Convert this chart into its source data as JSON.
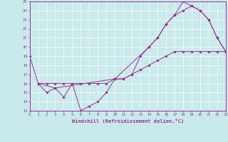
{
  "xlabel": "Windchill (Refroidissement éolien,°C)",
  "bg_color": "#c8eaea",
  "line_color": "#993399",
  "grid_color": "#ffffff",
  "xmin": 0,
  "xmax": 23,
  "ymin": 13,
  "ymax": 25,
  "series1_x": [
    0,
    1,
    2,
    3,
    4,
    5,
    6,
    7,
    8,
    9,
    10,
    11,
    12,
    13,
    14,
    15,
    16,
    17,
    18,
    19,
    20,
    21,
    22,
    23
  ],
  "series1_y": [
    19,
    16,
    15,
    15.5,
    14.5,
    16,
    13,
    13.5,
    14,
    15,
    16.5,
    16.5,
    17,
    19,
    20,
    21,
    22.5,
    23.5,
    24,
    24.5,
    24,
    23,
    21,
    19.5
  ],
  "series2_x": [
    1,
    2,
    3,
    4,
    5,
    6,
    7,
    8,
    9,
    10,
    11,
    12,
    13,
    14,
    15,
    16,
    17,
    18,
    19,
    20,
    21,
    22,
    23
  ],
  "series2_y": [
    16,
    16,
    16,
    16,
    16,
    16,
    16,
    16,
    16,
    16.5,
    16.5,
    17,
    17.5,
    18,
    18.5,
    19,
    19.5,
    19.5,
    19.5,
    19.5,
    19.5,
    19.5,
    19.5
  ],
  "series3_x": [
    1,
    3,
    10,
    14,
    15,
    16,
    17,
    18,
    19,
    20,
    21,
    22,
    23
  ],
  "series3_y": [
    16,
    15.5,
    16.5,
    20,
    21,
    22.5,
    23.5,
    25,
    24.5,
    24,
    23,
    21,
    19.5
  ]
}
